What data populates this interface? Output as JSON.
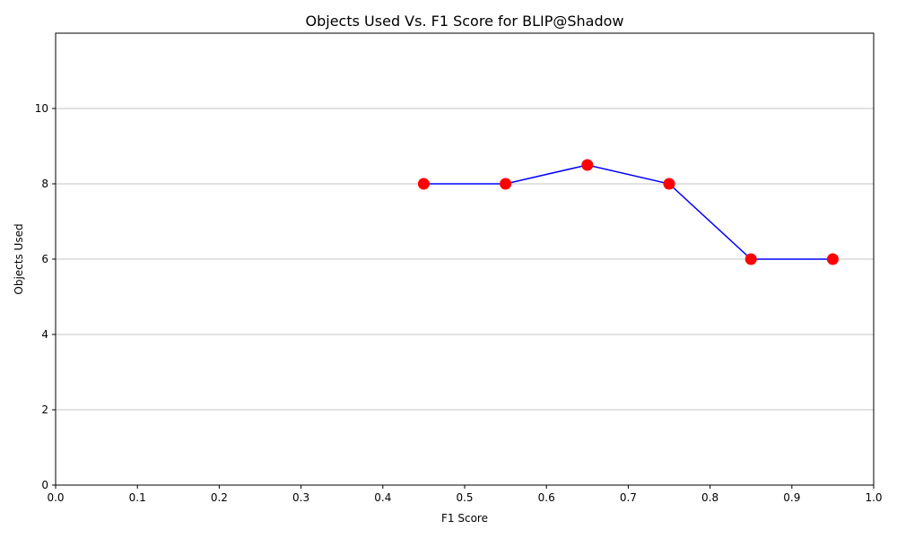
{
  "chart_data": {
    "type": "line",
    "title": "Objects Used Vs. F1 Score for BLIP@Shadow",
    "xlabel": "F1 Score",
    "ylabel": "Objects Used",
    "xlim": [
      0.0,
      1.0
    ],
    "ylim": [
      0,
      12
    ],
    "x_ticks": [
      "0.0",
      "0.1",
      "0.2",
      "0.3",
      "0.4",
      "0.5",
      "0.6",
      "0.7",
      "0.8",
      "0.9",
      "1.0"
    ],
    "y_ticks": [
      "0",
      "2",
      "4",
      "6",
      "8",
      "10"
    ],
    "grid": "horizontal",
    "series": [
      {
        "x": [
          0.45,
          0.55,
          0.65,
          0.75,
          0.85,
          0.95
        ],
        "y": [
          8,
          8,
          8.5,
          8,
          6,
          6
        ],
        "line_color": "#0000ff",
        "marker_color": "#ff0000"
      }
    ]
  }
}
